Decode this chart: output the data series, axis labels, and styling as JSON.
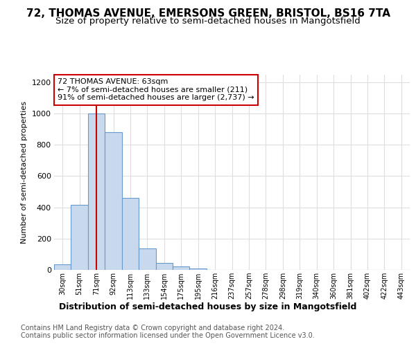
{
  "title1": "72, THOMAS AVENUE, EMERSONS GREEN, BRISTOL, BS16 7TA",
  "title2": "Size of property relative to semi-detached houses in Mangotsfield",
  "xlabel": "Distribution of semi-detached houses by size in Mangotsfield",
  "ylabel": "Number of semi-detached properties",
  "footer1": "Contains HM Land Registry data © Crown copyright and database right 2024.",
  "footer2": "Contains public sector information licensed under the Open Government Licence v3.0.",
  "bin_labels": [
    "30sqm",
    "51sqm",
    "71sqm",
    "92sqm",
    "113sqm",
    "133sqm",
    "154sqm",
    "175sqm",
    "195sqm",
    "216sqm",
    "237sqm",
    "257sqm",
    "278sqm",
    "298sqm",
    "319sqm",
    "340sqm",
    "360sqm",
    "381sqm",
    "402sqm",
    "422sqm",
    "443sqm"
  ],
  "bar_values": [
    35,
    415,
    1000,
    880,
    460,
    135,
    45,
    20,
    10,
    0,
    0,
    0,
    0,
    0,
    0,
    0,
    0,
    0,
    0,
    0,
    0
  ],
  "bar_color": "#c8d9ee",
  "bar_edge_color": "#6699cc",
  "vline_x_index": 2,
  "vline_color": "#cc0000",
  "annotation_line1": "72 THOMAS AVENUE: 63sqm",
  "annotation_line2": "← 7% of semi-detached houses are smaller (211)",
  "annotation_line3": "91% of semi-detached houses are larger (2,737) →",
  "annotation_box_color": "#ffffff",
  "annotation_box_edge": "#cc0000",
  "ylim": [
    0,
    1250
  ],
  "yticks": [
    0,
    200,
    400,
    600,
    800,
    1000,
    1200
  ],
  "background_color": "#ffffff",
  "plot_bg_color": "#ffffff",
  "grid_color": "#dddddd",
  "title1_fontsize": 11,
  "title2_fontsize": 9.5,
  "ylabel_fontsize": 8,
  "xlabel_fontsize": 9,
  "ytick_fontsize": 8,
  "xtick_fontsize": 7,
  "ann_fontsize": 8,
  "footer_fontsize": 7
}
